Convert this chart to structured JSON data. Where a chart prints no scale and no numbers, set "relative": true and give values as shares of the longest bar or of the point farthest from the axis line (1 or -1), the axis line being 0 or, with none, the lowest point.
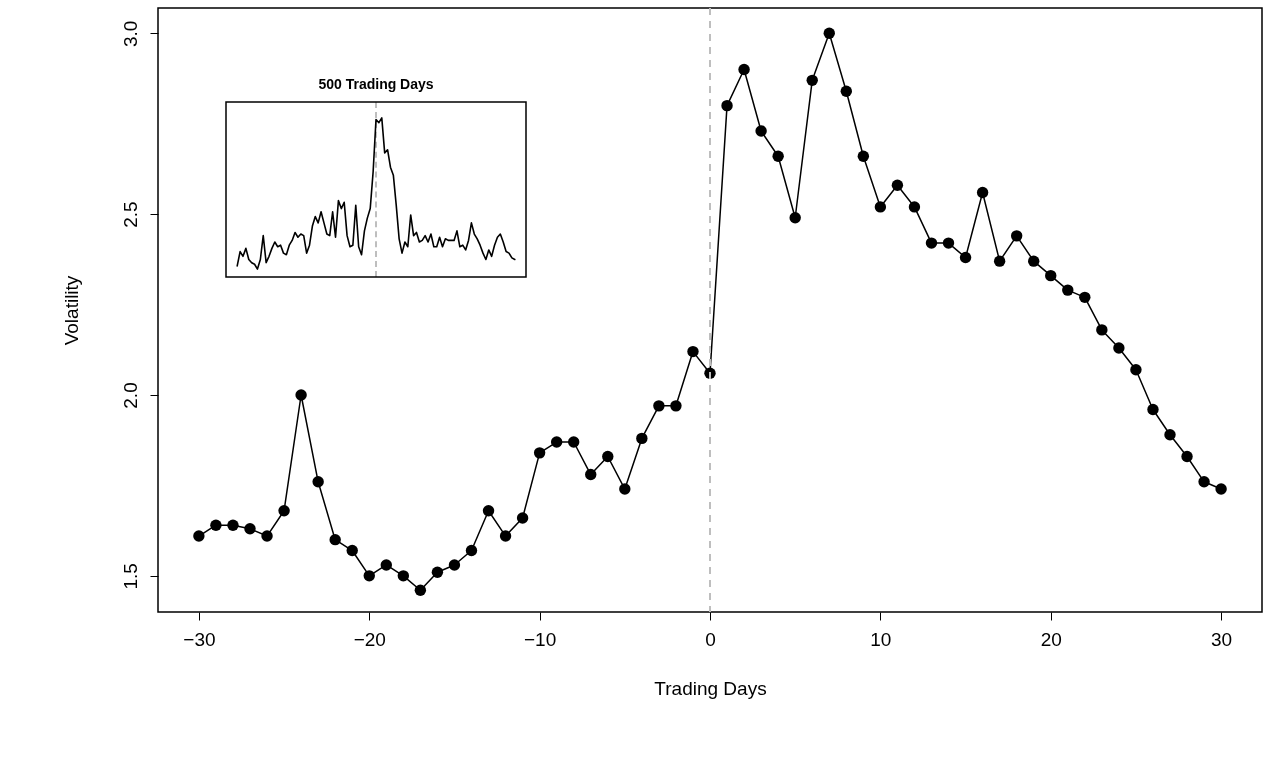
{
  "chart_data": [
    {
      "type": "line",
      "xlabel": "Trading Days",
      "ylabel": "Volatility",
      "marker": "circle",
      "x": [
        -30,
        -29,
        -28,
        -27,
        -26,
        -25,
        -24,
        -23,
        -22,
        -21,
        -20,
        -19,
        -18,
        -17,
        -16,
        -15,
        -14,
        -13,
        -12,
        -11,
        -10,
        -9,
        -8,
        -7,
        -6,
        -5,
        -4,
        -3,
        -2,
        -1,
        0,
        1,
        2,
        3,
        4,
        5,
        6,
        7,
        8,
        9,
        10,
        11,
        12,
        13,
        14,
        15,
        16,
        17,
        18,
        19,
        20,
        21,
        22,
        23,
        24,
        25,
        26,
        27,
        28,
        29,
        30
      ],
      "series": [
        {
          "color": "#000000",
          "values": [
            1.61,
            1.64,
            1.64,
            1.63,
            1.61,
            1.68,
            2.0,
            1.76,
            1.6,
            1.57,
            1.5,
            1.53,
            1.5,
            1.46,
            1.51,
            1.53,
            1.57,
            1.68,
            1.61,
            1.66,
            1.84,
            1.87,
            1.87,
            1.78,
            1.83,
            1.74,
            1.88,
            1.97,
            1.97,
            2.12,
            2.06,
            2.8,
            2.9,
            2.73,
            2.66,
            2.49,
            2.87,
            3.0,
            2.84,
            2.66,
            2.52,
            2.58,
            2.52,
            2.42,
            2.42,
            2.38,
            2.56,
            2.37,
            2.44,
            2.37,
            2.33,
            2.29,
            2.27,
            2.18,
            2.13,
            2.07,
            1.96,
            1.89,
            1.83,
            1.76,
            1.74
          ]
        }
      ],
      "xlim": [
        -32.4,
        32.4
      ],
      "ylim": [
        1.4,
        3.07
      ],
      "xticks": [
        -30,
        -20,
        -10,
        0,
        10,
        20,
        30
      ],
      "yticks": [
        1.5,
        {
          "value": 2,
          "label": "2.0"
        },
        2.5,
        {
          "value": 3,
          "label": "3.0"
        }
      ],
      "ref_lines": [
        {
          "axis": "x",
          "value": 0,
          "color": "#bebebe",
          "line_style": "dashed"
        }
      ]
    },
    {
      "type": "line",
      "title": "500 Trading Days",
      "relative": true,
      "categories": [
        null,
        null,
        null,
        null,
        null,
        null,
        null,
        null,
        null,
        null,
        null,
        null,
        null,
        null,
        null,
        null,
        null,
        null,
        null,
        null,
        null,
        null,
        null,
        null,
        null,
        null,
        null,
        null,
        null,
        null,
        null,
        null,
        null,
        null,
        null,
        null,
        null,
        null,
        null,
        null,
        null,
        null,
        null,
        null,
        null,
        null,
        null,
        null,
        null,
        null,
        null,
        null,
        null,
        null,
        null,
        null,
        null,
        null,
        null,
        null,
        null,
        null,
        null,
        null,
        null,
        null,
        null,
        null,
        null,
        null,
        null,
        null,
        null,
        null,
        null,
        null,
        null,
        null,
        null,
        null,
        null,
        null,
        null,
        null,
        null,
        null,
        null,
        null,
        null,
        null,
        null,
        null,
        null,
        null,
        null,
        null,
        null
      ],
      "series": [
        {
          "color": "#000000",
          "values": [
            0.07,
            0.16,
            0.13,
            0.18,
            0.11,
            0.09,
            0.08,
            0.05,
            0.11,
            0.26,
            0.09,
            0.13,
            0.18,
            0.22,
            0.19,
            0.2,
            0.15,
            0.14,
            0.2,
            0.23,
            0.28,
            0.25,
            0.27,
            0.26,
            0.15,
            0.2,
            0.32,
            0.38,
            0.34,
            0.41,
            0.34,
            0.27,
            0.26,
            0.41,
            0.25,
            0.48,
            0.43,
            0.47,
            0.26,
            0.19,
            0.2,
            0.45,
            0.19,
            0.14,
            0.29,
            0.37,
            0.43,
            0.66,
            0.99,
            0.97,
            1,
            0.78,
            0.8,
            0.69,
            0.64,
            0.45,
            0.24,
            0.15,
            0.22,
            0.19,
            0.39,
            0.26,
            0.28,
            0.22,
            0.23,
            0.26,
            0.22,
            0.27,
            0.19,
            0.19,
            0.25,
            0.19,
            0.24,
            0.23,
            0.23,
            0.23,
            0.29,
            0.19,
            0.2,
            0.17,
            0.23,
            0.34,
            0.27,
            0.24,
            0.2,
            0.15,
            0.11,
            0.17,
            0.13,
            0.2,
            0.25,
            0.27,
            0.22,
            0.16,
            0.15,
            0.12,
            0.11
          ]
        }
      ]
    }
  ]
}
